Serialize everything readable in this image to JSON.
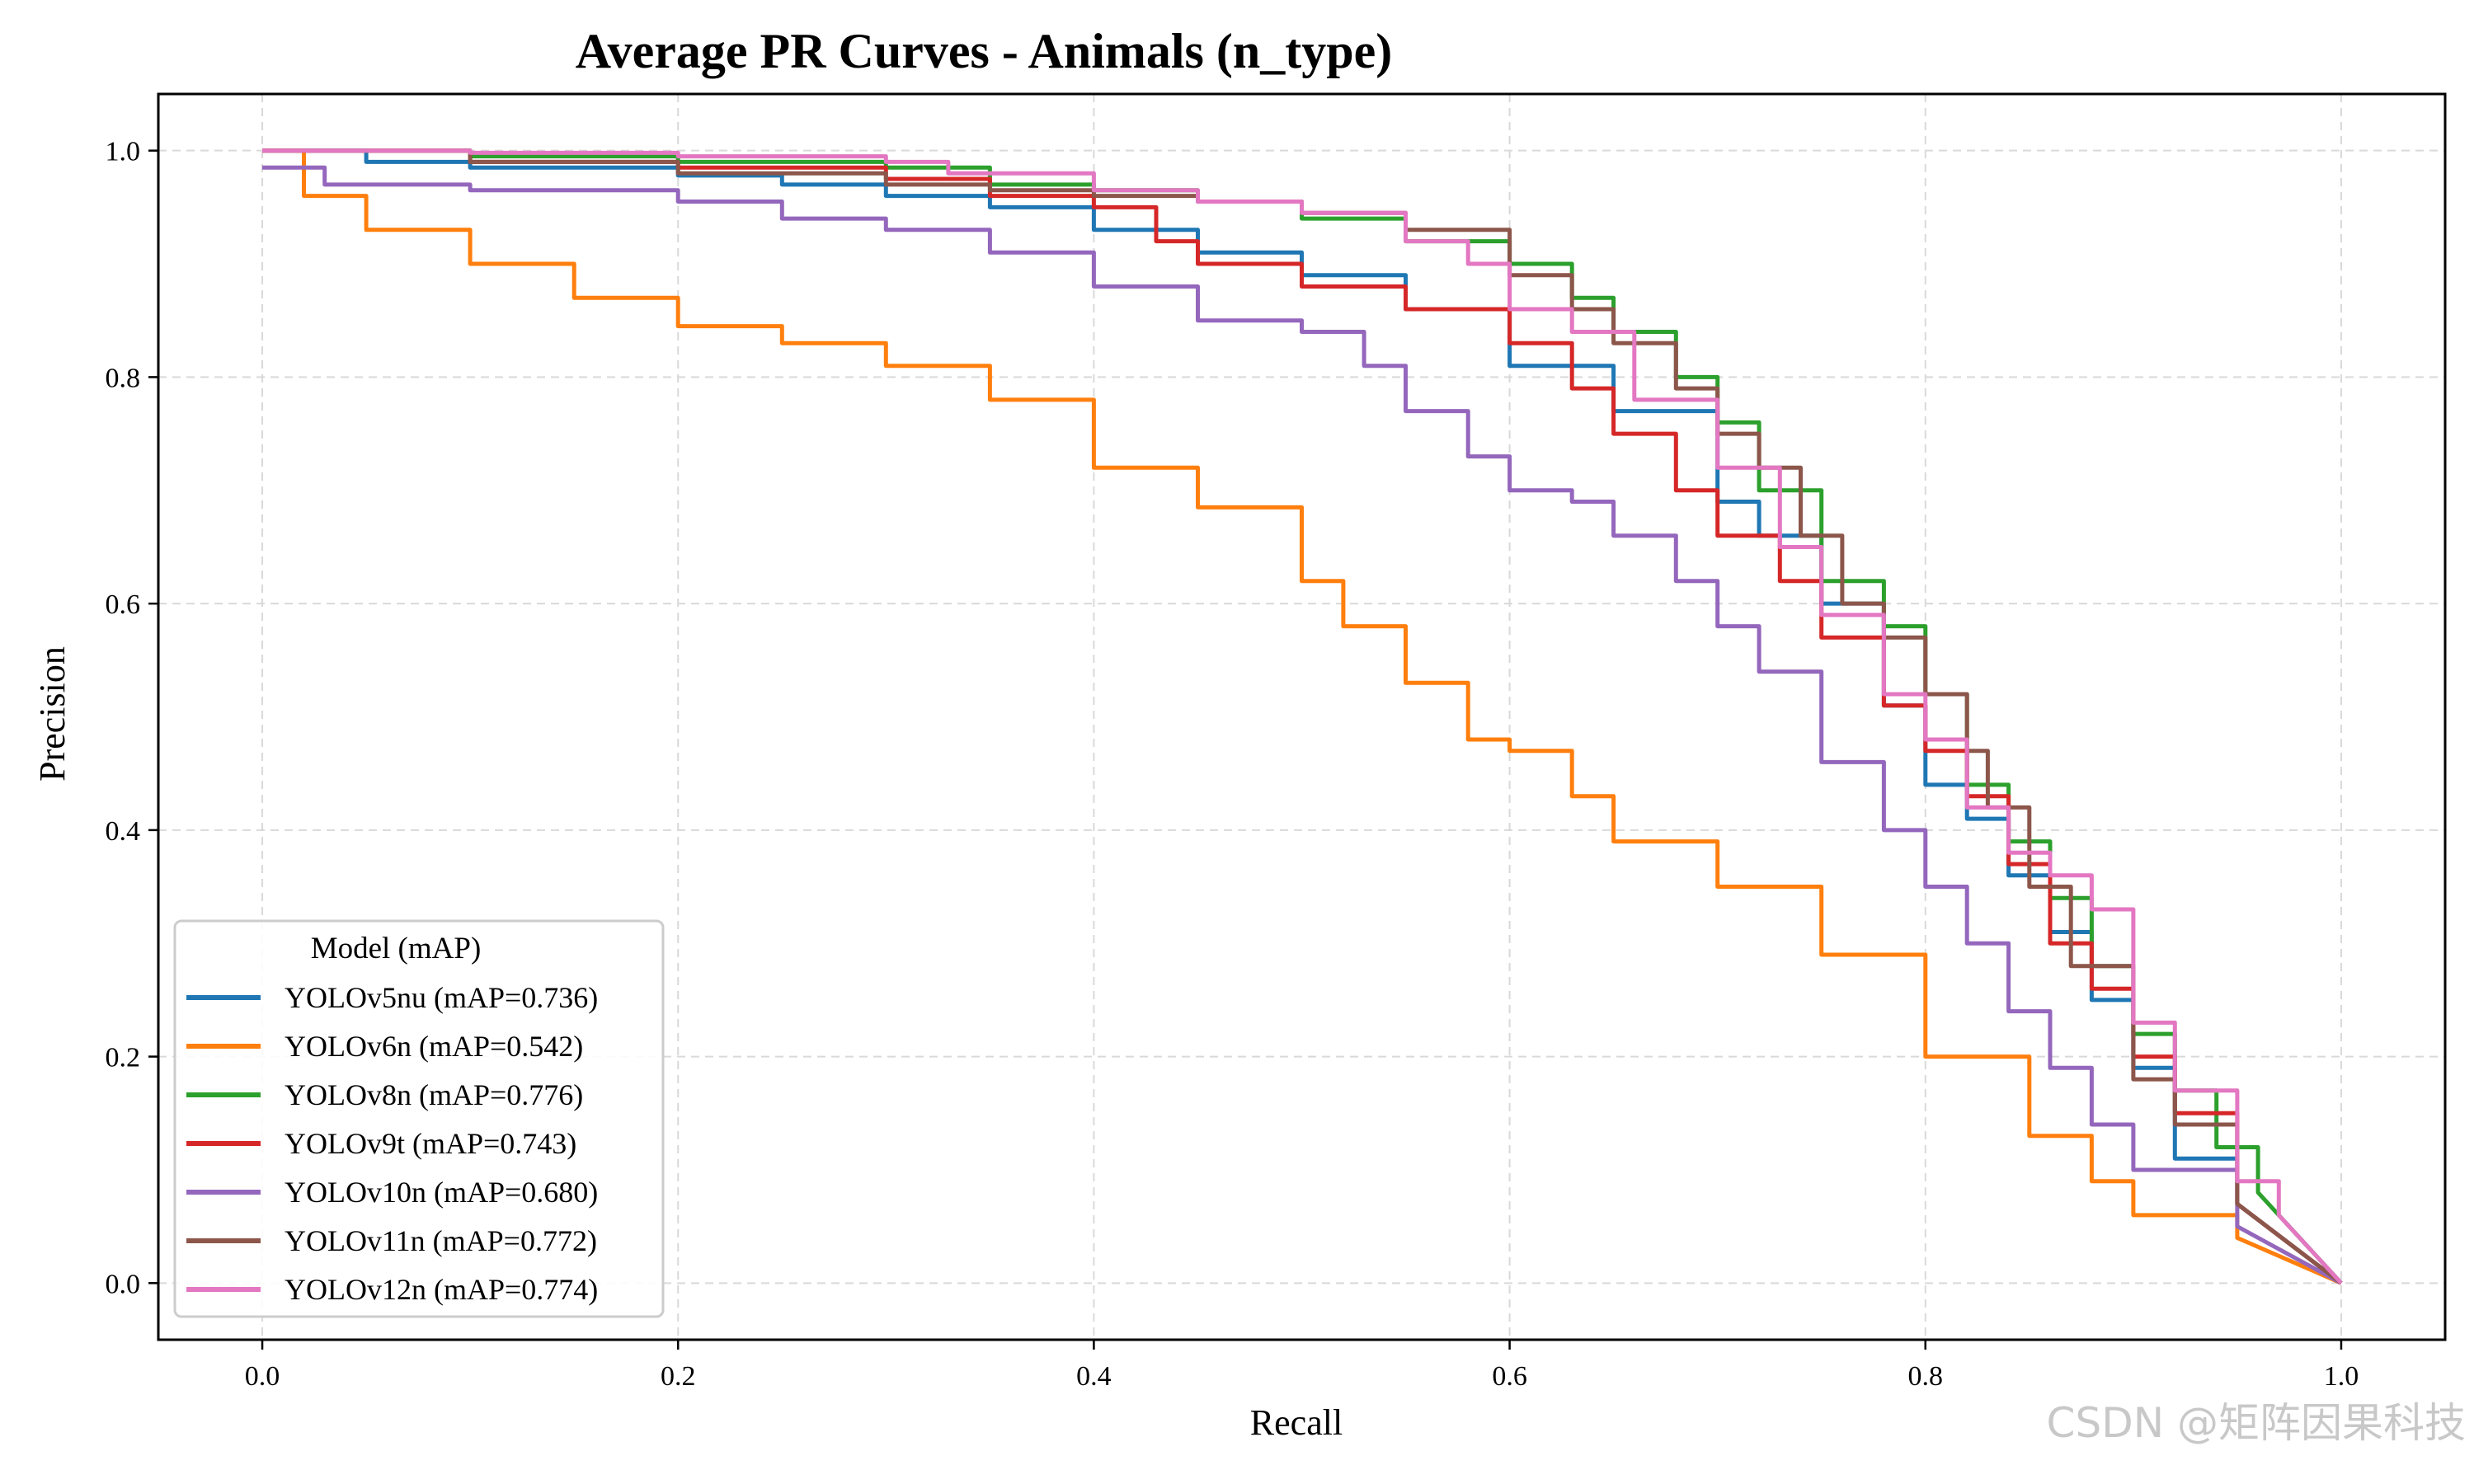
{
  "chart_data": {
    "type": "line",
    "title": "Average PR Curves - Animals (n_type)",
    "xlabel": "Recall",
    "ylabel": "Precision",
    "xlim": [
      -0.05,
      1.05
    ],
    "ylim": [
      -0.05,
      1.05
    ],
    "xticks": [
      "0.0",
      "0.2",
      "0.4",
      "0.6",
      "0.8",
      "1.0"
    ],
    "yticks": [
      "0.0",
      "0.2",
      "0.4",
      "0.6",
      "0.8",
      "1.0"
    ],
    "grid": true,
    "legend": {
      "title": "Model (mAP)",
      "placement": "lower-left"
    },
    "series": [
      {
        "name": "YOLOv5nu (mAP=0.736)",
        "color": "#1f77b4",
        "points": [
          [
            0,
            1.0
          ],
          [
            0.05,
            0.99
          ],
          [
            0.1,
            0.985
          ],
          [
            0.2,
            0.978
          ],
          [
            0.25,
            0.97
          ],
          [
            0.3,
            0.96
          ],
          [
            0.35,
            0.95
          ],
          [
            0.4,
            0.93
          ],
          [
            0.45,
            0.91
          ],
          [
            0.5,
            0.89
          ],
          [
            0.55,
            0.86
          ],
          [
            0.6,
            0.81
          ],
          [
            0.65,
            0.77
          ],
          [
            0.7,
            0.69
          ],
          [
            0.72,
            0.66
          ],
          [
            0.75,
            0.6
          ],
          [
            0.78,
            0.51
          ],
          [
            0.8,
            0.44
          ],
          [
            0.82,
            0.41
          ],
          [
            0.84,
            0.36
          ],
          [
            0.86,
            0.31
          ],
          [
            0.88,
            0.25
          ],
          [
            0.9,
            0.19
          ],
          [
            0.92,
            0.11
          ],
          [
            0.95,
            0.07
          ],
          [
            1.0,
            0.0
          ]
        ]
      },
      {
        "name": "YOLOv6n (mAP=0.542)",
        "color": "#ff7f0e",
        "points": [
          [
            0,
            1.0
          ],
          [
            0.02,
            0.96
          ],
          [
            0.05,
            0.93
          ],
          [
            0.1,
            0.9
          ],
          [
            0.15,
            0.87
          ],
          [
            0.2,
            0.845
          ],
          [
            0.25,
            0.83
          ],
          [
            0.3,
            0.81
          ],
          [
            0.35,
            0.78
          ],
          [
            0.4,
            0.72
          ],
          [
            0.45,
            0.685
          ],
          [
            0.5,
            0.62
          ],
          [
            0.52,
            0.58
          ],
          [
            0.55,
            0.53
          ],
          [
            0.58,
            0.48
          ],
          [
            0.6,
            0.47
          ],
          [
            0.63,
            0.43
          ],
          [
            0.65,
            0.39
          ],
          [
            0.7,
            0.35
          ],
          [
            0.75,
            0.29
          ],
          [
            0.8,
            0.2
          ],
          [
            0.85,
            0.13
          ],
          [
            0.88,
            0.09
          ],
          [
            0.9,
            0.06
          ],
          [
            0.95,
            0.04
          ],
          [
            1.0,
            0.0
          ]
        ]
      },
      {
        "name": "YOLOv8n (mAP=0.776)",
        "color": "#2ca02c",
        "points": [
          [
            0,
            1.0
          ],
          [
            0.1,
            0.995
          ],
          [
            0.2,
            0.99
          ],
          [
            0.3,
            0.985
          ],
          [
            0.35,
            0.97
          ],
          [
            0.4,
            0.965
          ],
          [
            0.45,
            0.955
          ],
          [
            0.5,
            0.94
          ],
          [
            0.55,
            0.92
          ],
          [
            0.6,
            0.9
          ],
          [
            0.63,
            0.87
          ],
          [
            0.65,
            0.84
          ],
          [
            0.68,
            0.8
          ],
          [
            0.7,
            0.76
          ],
          [
            0.72,
            0.7
          ],
          [
            0.75,
            0.62
          ],
          [
            0.78,
            0.58
          ],
          [
            0.8,
            0.52
          ],
          [
            0.82,
            0.44
          ],
          [
            0.84,
            0.39
          ],
          [
            0.86,
            0.34
          ],
          [
            0.88,
            0.28
          ],
          [
            0.9,
            0.22
          ],
          [
            0.92,
            0.17
          ],
          [
            0.94,
            0.12
          ],
          [
            0.96,
            0.08
          ],
          [
            1.0,
            0.0
          ]
        ]
      },
      {
        "name": "YOLOv9t (mAP=0.743)",
        "color": "#d62728",
        "points": [
          [
            0,
            1.0
          ],
          [
            0.1,
            0.99
          ],
          [
            0.2,
            0.985
          ],
          [
            0.3,
            0.975
          ],
          [
            0.35,
            0.96
          ],
          [
            0.4,
            0.95
          ],
          [
            0.43,
            0.92
          ],
          [
            0.45,
            0.9
          ],
          [
            0.5,
            0.88
          ],
          [
            0.55,
            0.86
          ],
          [
            0.6,
            0.83
          ],
          [
            0.63,
            0.79
          ],
          [
            0.65,
            0.75
          ],
          [
            0.68,
            0.7
          ],
          [
            0.7,
            0.66
          ],
          [
            0.73,
            0.62
          ],
          [
            0.75,
            0.57
          ],
          [
            0.78,
            0.51
          ],
          [
            0.8,
            0.47
          ],
          [
            0.82,
            0.43
          ],
          [
            0.84,
            0.37
          ],
          [
            0.86,
            0.3
          ],
          [
            0.88,
            0.26
          ],
          [
            0.9,
            0.2
          ],
          [
            0.92,
            0.15
          ],
          [
            0.95,
            0.07
          ],
          [
            1.0,
            0.0
          ]
        ]
      },
      {
        "name": "YOLOv10n (mAP=0.680)",
        "color": "#9467bd",
        "points": [
          [
            0,
            0.985
          ],
          [
            0.03,
            0.97
          ],
          [
            0.1,
            0.965
          ],
          [
            0.2,
            0.955
          ],
          [
            0.25,
            0.94
          ],
          [
            0.3,
            0.93
          ],
          [
            0.35,
            0.91
          ],
          [
            0.4,
            0.88
          ],
          [
            0.45,
            0.85
          ],
          [
            0.5,
            0.84
          ],
          [
            0.53,
            0.81
          ],
          [
            0.55,
            0.77
          ],
          [
            0.58,
            0.73
          ],
          [
            0.6,
            0.7
          ],
          [
            0.63,
            0.69
          ],
          [
            0.65,
            0.66
          ],
          [
            0.68,
            0.62
          ],
          [
            0.7,
            0.58
          ],
          [
            0.72,
            0.54
          ],
          [
            0.75,
            0.46
          ],
          [
            0.78,
            0.4
          ],
          [
            0.8,
            0.35
          ],
          [
            0.82,
            0.3
          ],
          [
            0.84,
            0.24
          ],
          [
            0.86,
            0.19
          ],
          [
            0.88,
            0.14
          ],
          [
            0.9,
            0.1
          ],
          [
            0.95,
            0.05
          ],
          [
            1.0,
            0.0
          ]
        ]
      },
      {
        "name": "YOLOv11n (mAP=0.772)",
        "color": "#8c564b",
        "points": [
          [
            0,
            1.0
          ],
          [
            0.1,
            0.99
          ],
          [
            0.2,
            0.98
          ],
          [
            0.3,
            0.97
          ],
          [
            0.35,
            0.965
          ],
          [
            0.4,
            0.96
          ],
          [
            0.45,
            0.955
          ],
          [
            0.5,
            0.945
          ],
          [
            0.55,
            0.93
          ],
          [
            0.6,
            0.89
          ],
          [
            0.63,
            0.86
          ],
          [
            0.65,
            0.83
          ],
          [
            0.68,
            0.79
          ],
          [
            0.7,
            0.75
          ],
          [
            0.72,
            0.72
          ],
          [
            0.74,
            0.66
          ],
          [
            0.76,
            0.6
          ],
          [
            0.78,
            0.57
          ],
          [
            0.8,
            0.52
          ],
          [
            0.82,
            0.47
          ],
          [
            0.83,
            0.42
          ],
          [
            0.85,
            0.35
          ],
          [
            0.87,
            0.28
          ],
          [
            0.9,
            0.18
          ],
          [
            0.92,
            0.14
          ],
          [
            0.95,
            0.07
          ],
          [
            1.0,
            0.0
          ]
        ]
      },
      {
        "name": "YOLOv12n (mAP=0.774)",
        "color": "#e377c2",
        "points": [
          [
            0,
            1.0
          ],
          [
            0.1,
            0.998
          ],
          [
            0.2,
            0.995
          ],
          [
            0.3,
            0.99
          ],
          [
            0.33,
            0.98
          ],
          [
            0.4,
            0.965
          ],
          [
            0.45,
            0.955
          ],
          [
            0.5,
            0.945
          ],
          [
            0.55,
            0.92
          ],
          [
            0.58,
            0.9
          ],
          [
            0.6,
            0.86
          ],
          [
            0.63,
            0.84
          ],
          [
            0.66,
            0.78
          ],
          [
            0.7,
            0.72
          ],
          [
            0.73,
            0.65
          ],
          [
            0.75,
            0.59
          ],
          [
            0.78,
            0.52
          ],
          [
            0.8,
            0.48
          ],
          [
            0.82,
            0.42
          ],
          [
            0.84,
            0.38
          ],
          [
            0.86,
            0.36
          ],
          [
            0.88,
            0.33
          ],
          [
            0.9,
            0.23
          ],
          [
            0.92,
            0.17
          ],
          [
            0.95,
            0.09
          ],
          [
            0.97,
            0.06
          ],
          [
            1.0,
            0.0
          ]
        ]
      }
    ]
  },
  "watermark": "CSDN @矩阵因果科技"
}
